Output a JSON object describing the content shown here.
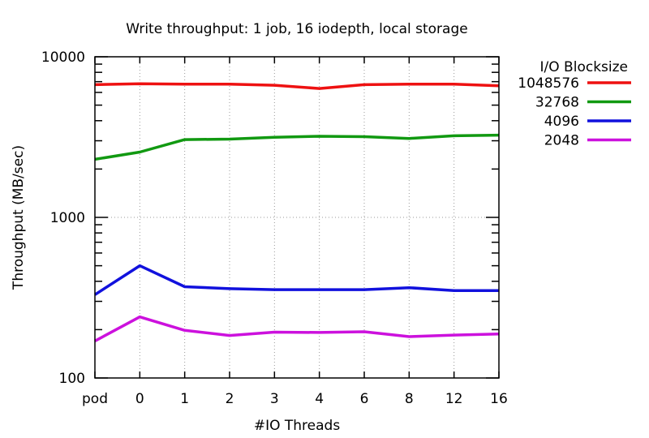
{
  "chart_data": {
    "type": "line",
    "title": "Write throughput: 1 job, 16 iodepth, local storage",
    "xlabel": "#IO Threads",
    "ylabel": "Throughput (MB/sec)",
    "categories": [
      "pod",
      "0",
      "1",
      "2",
      "3",
      "4",
      "6",
      "8",
      "12",
      "16"
    ],
    "yscale": "log",
    "ylim": [
      100,
      10000
    ],
    "yticks": [
      100,
      1000,
      10000
    ],
    "grid": true,
    "legend": {
      "title": "I/O Blocksize",
      "position": "right"
    },
    "series": [
      {
        "name": "1048576",
        "color": "#ee1111",
        "values": [
          6700,
          6800,
          6750,
          6750,
          6650,
          6350,
          6700,
          6750,
          6750,
          6600
        ]
      },
      {
        "name": "32768",
        "color": "#119911",
        "values": [
          2300,
          2550,
          3050,
          3070,
          3150,
          3200,
          3180,
          3100,
          3220,
          3250
        ]
      },
      {
        "name": "4096",
        "color": "#1111dd",
        "values": [
          330,
          500,
          370,
          360,
          355,
          355,
          355,
          365,
          350,
          350
        ]
      },
      {
        "name": "2048",
        "color": "#cc11dd",
        "values": [
          170,
          240,
          198,
          184,
          193,
          192,
          194,
          181,
          185,
          188
        ]
      }
    ]
  }
}
